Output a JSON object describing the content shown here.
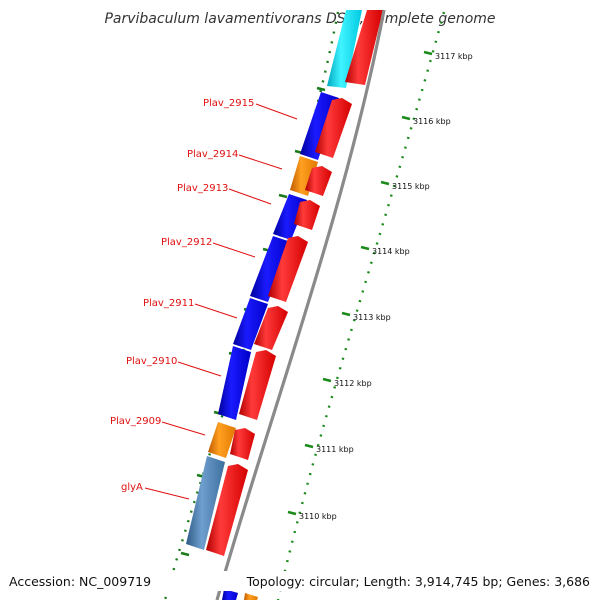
{
  "title": "Parvibaculum lavamentivorans DS-1, complete genome",
  "footer": {
    "accession": "Accession: NC_009719",
    "topology": "Topology: circular; Length: 3,914,745 bp; Genes: 3,686"
  },
  "colors": {
    "backbone": "#8a8a8a",
    "cds": "#ff0000",
    "gene_blue": "#0000ff",
    "gene_orange": "#ff8c00",
    "gene_cyan": "#00e5ff",
    "gene_steel": "#4a7fb5",
    "label": "#e01010",
    "tick": "#1a8a1a",
    "skew": "#1a7a1a"
  },
  "gene_labels": [
    "Plav_2915",
    "Plav_2914",
    "Plav_2913",
    "Plav_2912",
    "Plav_2911",
    "Plav_2910",
    "Plav_2909",
    "glyA"
  ],
  "scale_labels": [
    "3117 kbp",
    "3116 kbp",
    "3115 kbp",
    "3114 kbp",
    "3113 kbp",
    "3112 kbp",
    "3111 kbp",
    "3110 kbp"
  ]
}
